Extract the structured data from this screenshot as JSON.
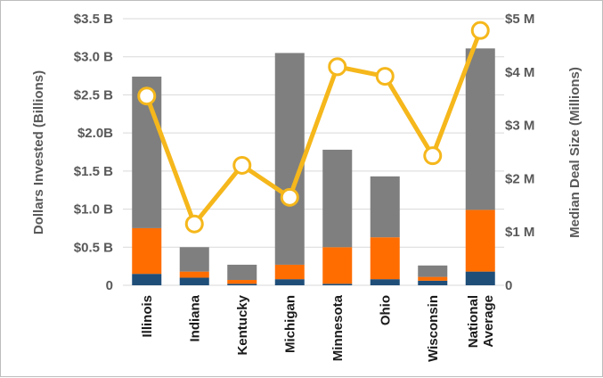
{
  "chart_data": {
    "type": "bar",
    "categories": [
      "Illinois",
      "Indiana",
      "Kentucky",
      "Michigan",
      "Minnesota",
      "Ohio",
      "Wisconsin",
      "National Average"
    ],
    "category_lines": [
      [
        "Illinois"
      ],
      [
        "Indiana"
      ],
      [
        "Kentucky"
      ],
      [
        "Michigan"
      ],
      [
        "Minnesota"
      ],
      [
        "Ohio"
      ],
      [
        "Wisconsin"
      ],
      [
        "National",
        "Average"
      ]
    ],
    "series": [
      {
        "values": [
          0.15,
          0.1,
          0.02,
          0.08,
          0.02,
          0.08,
          0.06,
          0.18
        ],
        "color": "#1f4e79"
      },
      {
        "values": [
          0.6,
          0.08,
          0.05,
          0.19,
          0.48,
          0.55,
          0.05,
          0.81
        ],
        "color": "#ff6d00"
      },
      {
        "values": [
          1.99,
          0.32,
          0.2,
          2.78,
          1.28,
          0.8,
          0.15,
          2.12
        ],
        "color": "#7f7f7f"
      }
    ],
    "line_series": {
      "values": [
        3.55,
        1.15,
        2.25,
        1.65,
        4.1,
        3.92,
        2.43,
        4.78
      ],
      "color": "#f5b71b",
      "axis": "right"
    },
    "ylabel": "Dollars Invested (Billions)",
    "ylabel_right": "Median Deal Size (Millions)",
    "ylim": [
      0,
      3.5
    ],
    "ylim_right": [
      0,
      5
    ],
    "yticks": [
      {
        "value": 0,
        "label": "0"
      },
      {
        "value": 0.5,
        "label": "$0.5 B"
      },
      {
        "value": 1.0,
        "label": "$1.0 B"
      },
      {
        "value": 1.5,
        "label": "$1.5 B"
      },
      {
        "value": 2.0,
        "label": "$2.0B"
      },
      {
        "value": 2.5,
        "label": "$2.5 B"
      },
      {
        "value": 3.0,
        "label": "$3.0 B"
      },
      {
        "value": 3.5,
        "label": "$3.5 B"
      }
    ],
    "yticks_right": [
      {
        "value": 0,
        "label": "0"
      },
      {
        "value": 1,
        "label": "$1 M"
      },
      {
        "value": 2,
        "label": "$2 M"
      },
      {
        "value": 3,
        "label": "$3 M"
      },
      {
        "value": 4,
        "label": "$4 M"
      },
      {
        "value": 5,
        "label": "$5 M"
      }
    ],
    "grid": true
  }
}
